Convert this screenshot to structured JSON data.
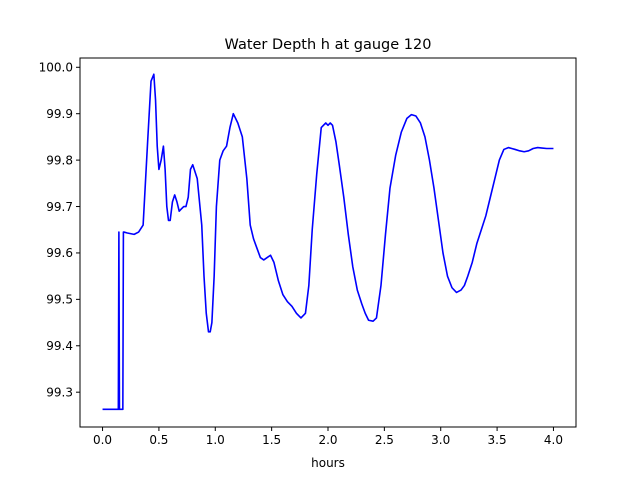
{
  "chart_data": {
    "type": "line",
    "title": "Water Depth h at gauge 120",
    "xlabel": "hours",
    "ylabel": "",
    "xlim": [
      -0.2,
      4.2
    ],
    "ylim": [
      99.225,
      100.02
    ],
    "grid": false,
    "legend": "none",
    "xticks": [
      0.0,
      0.5,
      1.0,
      1.5,
      2.0,
      2.5,
      3.0,
      3.5,
      4.0
    ],
    "xtick_labels": [
      "0.0",
      "0.5",
      "1.0",
      "1.5",
      "2.0",
      "2.5",
      "3.0",
      "3.5",
      "4.0"
    ],
    "yticks": [
      99.3,
      99.4,
      99.5,
      99.6,
      99.7,
      99.8,
      99.9,
      100.0
    ],
    "ytick_labels": [
      "99.3",
      "99.4",
      "99.5",
      "99.6",
      "99.7",
      "99.8",
      "99.9",
      "100.0"
    ],
    "series": [
      {
        "color": "#0000ff",
        "x": [
          0.0,
          0.14,
          0.145,
          0.15,
          0.155,
          0.18,
          0.185,
          0.19,
          0.22,
          0.28,
          0.32,
          0.36,
          0.4,
          0.43,
          0.455,
          0.47,
          0.485,
          0.5,
          0.52,
          0.54,
          0.555,
          0.57,
          0.585,
          0.6,
          0.62,
          0.64,
          0.66,
          0.68,
          0.7,
          0.72,
          0.74,
          0.76,
          0.78,
          0.8,
          0.84,
          0.88,
          0.9,
          0.92,
          0.94,
          0.955,
          0.97,
          0.99,
          1.01,
          1.04,
          1.07,
          1.1,
          1.13,
          1.16,
          1.2,
          1.24,
          1.28,
          1.31,
          1.34,
          1.37,
          1.4,
          1.43,
          1.46,
          1.49,
          1.52,
          1.56,
          1.6,
          1.64,
          1.68,
          1.72,
          1.76,
          1.8,
          1.83,
          1.86,
          1.9,
          1.94,
          1.98,
          2.0,
          2.02,
          2.04,
          2.07,
          2.1,
          2.14,
          2.18,
          2.22,
          2.26,
          2.3,
          2.33,
          2.36,
          2.4,
          2.43,
          2.47,
          2.51,
          2.55,
          2.6,
          2.65,
          2.7,
          2.74,
          2.78,
          2.82,
          2.86,
          2.9,
          2.94,
          2.98,
          3.02,
          3.06,
          3.1,
          3.14,
          3.18,
          3.21,
          3.24,
          3.28,
          3.32,
          3.36,
          3.4,
          3.44,
          3.48,
          3.52,
          3.56,
          3.6,
          3.63,
          3.66,
          3.7,
          3.74,
          3.78,
          3.82,
          3.86,
          3.9,
          3.94,
          3.97,
          4.0
        ],
        "y": [
          99.263,
          99.263,
          99.645,
          99.263,
          99.263,
          99.263,
          99.645,
          99.645,
          99.643,
          99.64,
          99.645,
          99.66,
          99.84,
          99.97,
          99.985,
          99.93,
          99.83,
          99.78,
          99.8,
          99.83,
          99.78,
          99.7,
          99.67,
          99.67,
          99.71,
          99.725,
          99.71,
          99.69,
          99.695,
          99.7,
          99.7,
          99.72,
          99.78,
          99.79,
          99.76,
          99.66,
          99.55,
          99.47,
          99.43,
          99.43,
          99.45,
          99.55,
          99.7,
          99.8,
          99.82,
          99.83,
          99.87,
          99.9,
          99.88,
          99.85,
          99.76,
          99.66,
          99.63,
          99.61,
          99.59,
          99.585,
          99.59,
          99.595,
          99.58,
          99.54,
          99.51,
          99.495,
          99.485,
          99.47,
          99.46,
          99.47,
          99.53,
          99.65,
          99.77,
          99.87,
          99.88,
          99.875,
          99.88,
          99.875,
          99.84,
          99.79,
          99.72,
          99.64,
          99.57,
          99.52,
          99.49,
          99.47,
          99.455,
          99.453,
          99.46,
          99.53,
          99.64,
          99.74,
          99.81,
          99.86,
          99.89,
          99.898,
          99.895,
          99.88,
          99.85,
          99.8,
          99.74,
          99.67,
          99.6,
          99.55,
          99.525,
          99.515,
          99.52,
          99.53,
          99.55,
          99.58,
          99.62,
          99.65,
          99.68,
          99.72,
          99.76,
          99.8,
          99.823,
          99.827,
          99.825,
          99.823,
          99.82,
          99.818,
          99.82,
          99.825,
          99.827,
          99.826,
          99.825,
          99.825,
          99.825
        ]
      }
    ]
  }
}
